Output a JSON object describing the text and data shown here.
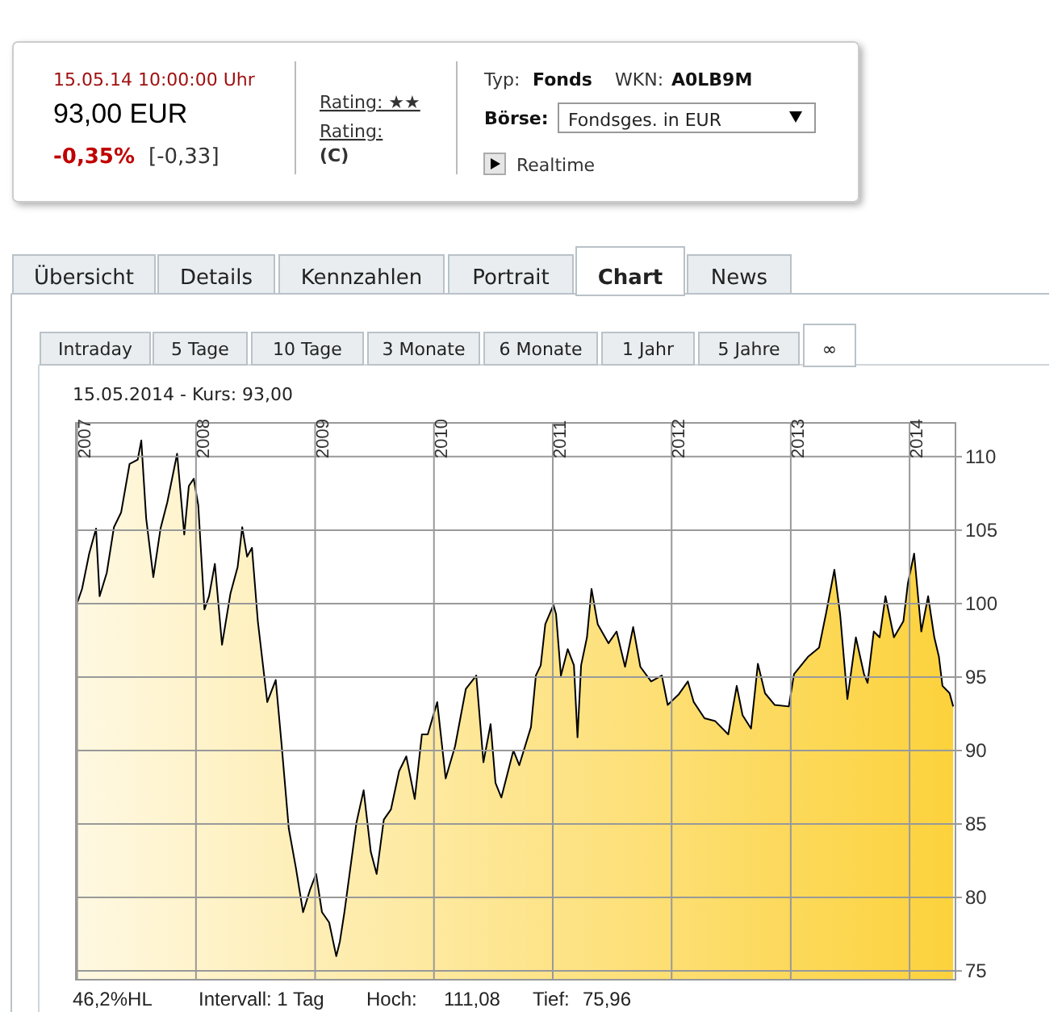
{
  "chart_data": {
    "type": "area",
    "subtitle": "15.05.2014  - Kurs: 93,00",
    "annotations": [
      "15.05.14  10:00:00 Uhr",
      "93,00 EUR",
      "-0,35%",
      "[-0,33]",
      "Rating: ★★",
      "Rating:",
      "(C)",
      "Typ:",
      "Fonds",
      "WKN:",
      "A0LB9M",
      "Börse:",
      "Fondsges. in EUR",
      "Realtime",
      "Übersicht",
      "Details",
      "Kennzahlen",
      "Portrait",
      "Chart",
      "News",
      "Intraday",
      "5 Tage",
      "10 Tage",
      "3 Monate",
      "6 Monate",
      "1 Jahr",
      "5 Jahre",
      "∞",
      "46,2%HL",
      "Intervall: 1 Tag",
      "Hoch:",
      "111,08",
      "Tief:",
      "75,96"
    ],
    "x": [
      "2007-01-02",
      "2007-01-16",
      "2007-02-07",
      "2007-02-28",
      "2007-03-11",
      "2007-04-02",
      "2007-04-24",
      "2007-05-16",
      "2007-06-11",
      "2007-07-06",
      "2007-07-17",
      "2007-08-01",
      "2007-08-23",
      "2007-09-14",
      "2007-10-05",
      "2007-11-04",
      "2007-11-26",
      "2007-12-10",
      "2007-12-25",
      "2008-01-08",
      "2008-01-27",
      "2008-02-10",
      "2008-02-28",
      "2008-03-21",
      "2008-04-16",
      "2008-05-08",
      "2008-05-22",
      "2008-06-06",
      "2008-06-21",
      "2008-07-09",
      "2008-08-07",
      "2008-09-02",
      "2008-09-20",
      "2008-10-12",
      "2008-11-03",
      "2008-11-25",
      "2008-12-16",
      "2009-01-04",
      "2009-01-22",
      "2009-02-13",
      "2009-03-07",
      "2009-03-18",
      "2009-04-01",
      "2009-05-08",
      "2009-05-30",
      "2009-06-21",
      "2009-07-09",
      "2009-07-31",
      "2009-08-22",
      "2009-09-16",
      "2009-10-08",
      "2009-11-03",
      "2009-11-25",
      "2009-12-13",
      "2010-01-11",
      "2010-02-06",
      "2010-03-07",
      "2010-04-09",
      "2010-05-11",
      "2010-06-02",
      "2010-06-24",
      "2010-07-09",
      "2010-07-27",
      "2010-09-02",
      "2010-09-20",
      "2010-10-26",
      "2010-11-10",
      "2010-11-25",
      "2010-12-09",
      "2011-01-03",
      "2011-01-11",
      "2011-01-26",
      "2011-02-16",
      "2011-03-07",
      "2011-03-18",
      "2011-03-29",
      "2011-04-16",
      "2011-04-30",
      "2011-05-19",
      "2011-06-21",
      "2011-07-16",
      "2011-08-11",
      "2011-09-05",
      "2011-09-27",
      "2011-10-30",
      "2011-12-02",
      "2011-12-20",
      "2012-01-22",
      "2012-02-20",
      "2012-03-09",
      "2012-04-11",
      "2012-05-14",
      "2012-06-23",
      "2012-07-19",
      "2012-08-06",
      "2012-09-01",
      "2012-09-22",
      "2012-10-14",
      "2012-11-13",
      "2012-12-26",
      "2013-01-11",
      "2013-02-24",
      "2013-03-29",
      "2013-04-20",
      "2013-05-15",
      "2013-06-02",
      "2013-06-24",
      "2013-07-20",
      "2013-08-14",
      "2013-08-25",
      "2013-09-13",
      "2013-10-01",
      "2013-10-19",
      "2013-11-14",
      "2013-12-13",
      "2013-12-27",
      "2014-01-15",
      "2014-02-06",
      "2014-02-27",
      "2014-03-18",
      "2014-04-01",
      "2014-04-12",
      "2014-05-04",
      "2014-05-15"
    ],
    "series": [
      {
        "color": "#fcd23c",
        "values": [
          100.1,
          101.0,
          103.4,
          105.1,
          100.5,
          102.1,
          105.2,
          106.2,
          109.5,
          109.8,
          111.1,
          105.8,
          101.8,
          105.1,
          106.9,
          110.2,
          104.7,
          108.0,
          108.5,
          106.7,
          99.6,
          100.5,
          102.7,
          97.2,
          100.7,
          102.5,
          105.2,
          103.2,
          103.8,
          98.8,
          93.3,
          94.8,
          90.4,
          84.7,
          82.0,
          79.0,
          80.5,
          81.6,
          79.0,
          78.3,
          76.0,
          77.0,
          79.0,
          85.1,
          87.3,
          83.1,
          81.6,
          85.3,
          86.0,
          88.6,
          89.6,
          86.7,
          91.1,
          91.1,
          93.3,
          88.1,
          90.3,
          94.2,
          95.1,
          89.2,
          91.8,
          87.8,
          86.8,
          90.0,
          89.0,
          91.6,
          95.1,
          95.8,
          98.6,
          99.9,
          99.3,
          95.1,
          96.9,
          95.8,
          90.9,
          95.8,
          97.7,
          101.0,
          98.6,
          97.3,
          98.1,
          95.7,
          98.4,
          95.7,
          94.7,
          95.1,
          93.1,
          93.8,
          94.7,
          93.3,
          92.2,
          92.0,
          91.1,
          94.4,
          92.4,
          91.5,
          95.9,
          93.9,
          93.1,
          93.0,
          95.2,
          96.4,
          97.0,
          99.4,
          102.3,
          99.2,
          93.5,
          97.7,
          95.2,
          94.6,
          98.1,
          97.7,
          100.5,
          97.7,
          98.8,
          101.4,
          103.4,
          98.1,
          100.5,
          97.7,
          96.4,
          94.4,
          93.9,
          93.0
        ]
      }
    ],
    "xlim": [
      "2006-12-28",
      "2014-05-22"
    ],
    "xticks": [
      {
        "value": "2007-01-01",
        "label": "2007"
      },
      {
        "value": "2008-01-01",
        "label": "2008"
      },
      {
        "value": "2009-01-01",
        "label": "2009"
      },
      {
        "value": "2010-01-01",
        "label": "2010"
      },
      {
        "value": "2011-01-01",
        "label": "2011"
      },
      {
        "value": "2012-01-01",
        "label": "2012"
      },
      {
        "value": "2013-01-01",
        "label": "2013"
      },
      {
        "value": "2014-01-01",
        "label": "2014"
      }
    ],
    "ylim": [
      74.4,
      112.3
    ],
    "yticks": [
      75,
      80,
      85,
      90,
      95,
      100,
      105,
      110
    ],
    "grid": true
  }
}
